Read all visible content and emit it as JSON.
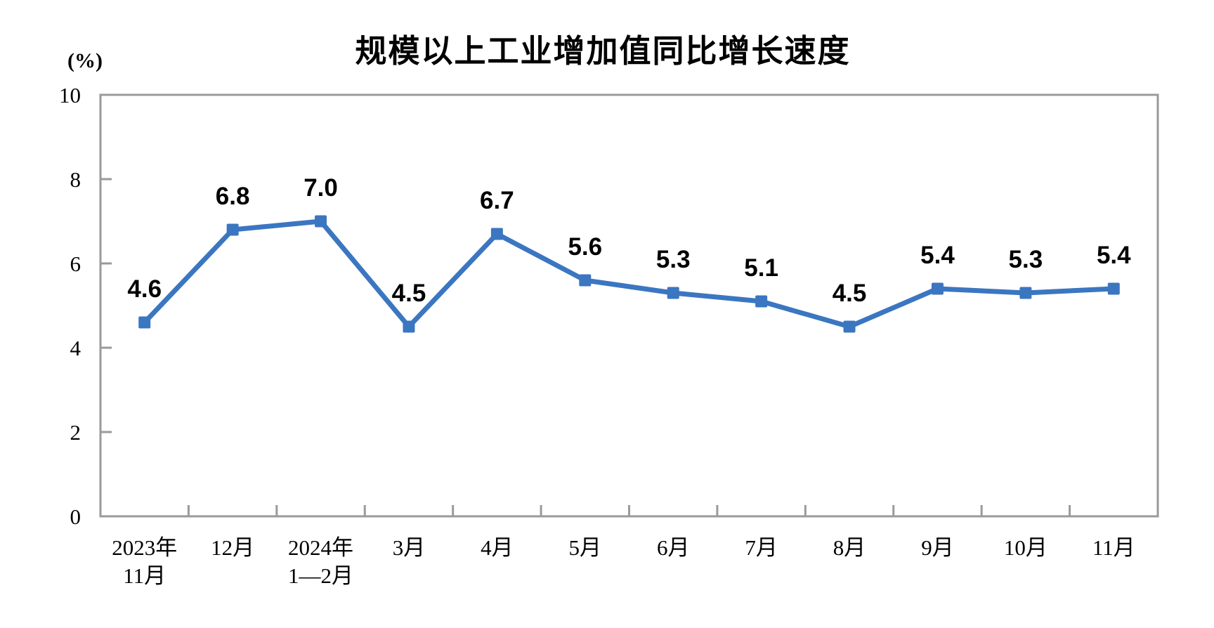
{
  "chart": {
    "title": "规模以上工业增加值同比增长速度",
    "unit_label": "(%)"
  },
  "chart_data": {
    "type": "line",
    "title": "规模以上工业增加值同比增长速度",
    "ylabel": "(%)",
    "xlabel": "",
    "categories": [
      "2023年\n11月",
      "12月",
      "2024年\n1—2月",
      "3月",
      "4月",
      "5月",
      "6月",
      "7月",
      "8月",
      "9月",
      "10月",
      "11月"
    ],
    "values": [
      4.6,
      6.8,
      7.0,
      4.5,
      6.7,
      5.6,
      5.3,
      5.1,
      4.5,
      5.4,
      5.3,
      5.4
    ],
    "data_labels": [
      "4.6",
      "6.8",
      "7.0",
      "4.5",
      "6.7",
      "5.6",
      "5.3",
      "5.1",
      "4.5",
      "5.4",
      "5.3",
      "5.4"
    ],
    "ylim": [
      0,
      10
    ],
    "y_ticks": [
      0,
      2,
      4,
      6,
      8,
      10
    ],
    "grid": false,
    "legend": false,
    "marker": "square",
    "colors": {
      "series": "#3B76C1",
      "axis": "#9A9A9A",
      "text": "#000000"
    }
  }
}
